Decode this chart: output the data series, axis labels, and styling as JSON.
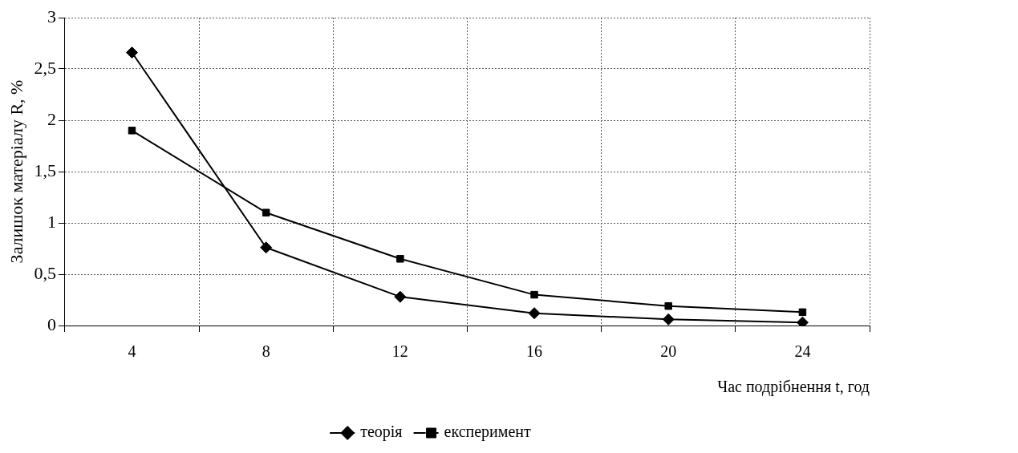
{
  "chart_data": {
    "type": "line",
    "xlabel": "Час подрібнення t, год",
    "ylabel": "Залишок матеріалу R, %",
    "categories": [
      "4",
      "8",
      "12",
      "16",
      "20",
      "24"
    ],
    "series": [
      {
        "name": "теорія",
        "color": "#000000",
        "marker": "diamond",
        "values": [
          2.66,
          0.76,
          0.28,
          0.12,
          0.06,
          0.03
        ]
      },
      {
        "name": "експеримент",
        "color": "#000000",
        "marker": "square",
        "values": [
          1.9,
          1.1,
          0.65,
          0.3,
          0.19,
          0.13
        ]
      }
    ],
    "ylim": [
      0,
      3
    ],
    "yticks": [
      0,
      {
        "value": 0.5,
        "label": "0,5"
      },
      1,
      {
        "value": 1.5,
        "label": "1,5"
      },
      2,
      {
        "value": 2.5,
        "label": "2,5"
      },
      3
    ],
    "grid": true,
    "legend": "bottom",
    "line_style": "solid"
  }
}
